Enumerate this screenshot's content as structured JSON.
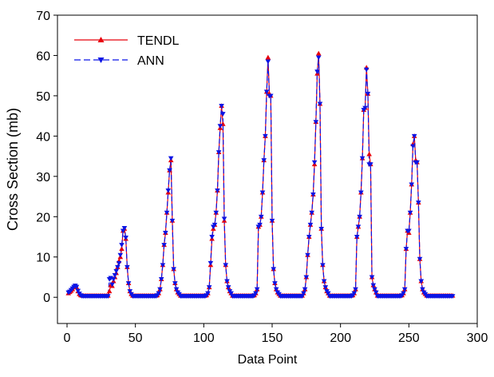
{
  "chart_data": {
    "type": "line",
    "x_label": "Data Point",
    "y_label": "Cross Section (mb)",
    "xlim": [
      -7,
      300
    ],
    "ylim": [
      -6.5,
      70
    ],
    "xticks": [
      0,
      50,
      100,
      150,
      200,
      250,
      300
    ],
    "yticks": [
      0,
      10,
      20,
      30,
      40,
      50,
      60,
      70
    ],
    "legend": "upper left",
    "x": [
      1,
      2,
      3,
      4,
      5,
      6,
      7,
      8,
      9,
      10,
      11,
      12,
      13,
      14,
      15,
      16,
      17,
      18,
      19,
      20,
      21,
      22,
      23,
      24,
      25,
      26,
      27,
      28,
      29,
      30,
      31,
      32,
      33,
      34,
      35,
      36,
      37,
      38,
      39,
      40,
      41,
      42,
      43,
      44,
      45,
      46,
      47,
      48,
      49,
      50,
      51,
      52,
      53,
      54,
      55,
      56,
      57,
      58,
      59,
      60,
      61,
      62,
      63,
      64,
      65,
      66,
      67,
      68,
      69,
      70,
      71,
      72,
      73,
      74,
      75,
      76,
      77,
      78,
      79,
      80,
      81,
      82,
      83,
      84,
      85,
      86,
      87,
      88,
      89,
      90,
      91,
      92,
      93,
      94,
      95,
      96,
      97,
      98,
      99,
      100,
      101,
      102,
      103,
      104,
      105,
      106,
      107,
      108,
      109,
      110,
      111,
      112,
      113,
      114,
      115,
      116,
      117,
      118,
      119,
      120,
      121,
      122,
      123,
      124,
      125,
      126,
      127,
      128,
      129,
      130,
      131,
      132,
      133,
      134,
      135,
      136,
      137,
      138,
      139,
      140,
      141,
      142,
      143,
      144,
      145,
      146,
      147,
      148,
      149,
      150,
      151,
      152,
      153,
      154,
      155,
      156,
      157,
      158,
      159,
      160,
      161,
      162,
      163,
      164,
      165,
      166,
      167,
      168,
      169,
      170,
      171,
      172,
      173,
      174,
      175,
      176,
      177,
      178,
      179,
      180,
      181,
      182,
      183,
      184,
      185,
      186,
      187,
      188,
      189,
      190,
      191,
      192,
      193,
      194,
      195,
      196,
      197,
      198,
      199,
      200,
      201,
      202,
      203,
      204,
      205,
      206,
      207,
      208,
      209,
      210,
      211,
      212,
      213,
      214,
      215,
      216,
      217,
      218,
      219,
      220,
      221,
      222,
      223,
      224,
      225,
      226,
      227,
      228,
      229,
      230,
      231,
      232,
      233,
      234,
      235,
      236,
      237,
      238,
      239,
      240,
      241,
      242,
      243,
      244,
      245,
      246,
      247,
      248,
      249,
      250,
      251,
      252,
      253,
      254,
      255,
      256,
      257,
      258,
      259,
      260,
      261,
      262,
      263,
      264,
      265,
      266,
      267,
      268,
      269,
      270,
      271,
      272,
      273,
      274,
      275,
      276,
      277,
      278,
      279,
      280,
      281,
      282
    ],
    "series": [
      {
        "name": "TENDL",
        "color": "#e8000b",
        "marker": "triangle-up",
        "dash": false,
        "values": [
          1.0,
          1.3,
          1.6,
          2.0,
          2.5,
          2.8,
          2.5,
          1.5,
          0.8,
          0.5,
          0.4,
          0.4,
          0.4,
          0.4,
          0.4,
          0.4,
          0.4,
          0.4,
          0.4,
          0.4,
          0.4,
          0.4,
          0.4,
          0.4,
          0.4,
          0.4,
          0.4,
          0.4,
          0.4,
          0.4,
          1.5,
          3,
          2.8,
          4,
          5,
          6,
          7.5,
          9,
          10,
          12,
          16.5,
          17,
          14.5,
          7.5,
          3.5,
          1.5,
          0.8,
          0.4,
          0.4,
          0.4,
          0.4,
          0.4,
          0.4,
          0.4,
          0.4,
          0.4,
          0.4,
          0.4,
          0.4,
          0.4,
          0.4,
          0.4,
          0.4,
          0.4,
          0.4,
          0.5,
          1,
          2,
          4.5,
          8,
          13,
          16,
          21,
          26,
          31.5,
          34,
          19,
          7,
          3.5,
          2,
          1.2,
          0.8,
          0.4,
          0.4,
          0.4,
          0.4,
          0.4,
          0.4,
          0.4,
          0.4,
          0.4,
          0.4,
          0.4,
          0.4,
          0.4,
          0.4,
          0.4,
          0.4,
          0.4,
          0.4,
          0.4,
          0.5,
          1,
          2.5,
          8,
          14.5,
          17,
          18,
          21,
          26.5,
          36,
          42,
          47.5,
          43,
          19,
          8,
          4,
          2.5,
          1.5,
          1,
          0.4,
          0.4,
          0.4,
          0.4,
          0.4,
          0.4,
          0.4,
          0.4,
          0.4,
          0.4,
          0.4,
          0.4,
          0.4,
          0.4,
          0.4,
          0.4,
          0.5,
          1,
          2,
          17.5,
          18,
          20,
          26,
          34,
          40,
          51,
          59.5,
          50.5,
          50,
          19,
          7,
          3.5,
          2,
          1.2,
          0.8,
          0.4,
          0.4,
          0.4,
          0.4,
          0.4,
          0.4,
          0.4,
          0.4,
          0.4,
          0.4,
          0.4,
          0.4,
          0.4,
          0.4,
          0.4,
          0.4,
          0.4,
          1,
          2,
          5,
          10.5,
          15,
          18,
          21,
          25.5,
          33,
          43.5,
          55.5,
          60.5,
          48,
          17,
          8,
          4,
          2.5,
          1.5,
          1,
          0.4,
          0.4,
          0.4,
          0.4,
          0.4,
          0.4,
          0.4,
          0.4,
          0.4,
          0.4,
          0.4,
          0.4,
          0.4,
          0.4,
          0.4,
          0.4,
          0.4,
          0.5,
          1,
          2,
          15,
          17.5,
          20,
          26,
          34.5,
          46.5,
          47,
          57,
          50.5,
          35.5,
          33,
          5,
          3,
          2,
          1.2,
          0.4,
          0.4,
          0.4,
          0.4,
          0.4,
          0.4,
          0.4,
          0.4,
          0.4,
          0.4,
          0.4,
          0.4,
          0.4,
          0.4,
          0.4,
          0.4,
          0.4,
          0.4,
          0.5,
          1,
          2,
          12,
          16.5,
          16,
          21,
          28,
          38,
          40,
          34,
          33.5,
          23.5,
          9.5,
          4,
          2,
          1.2,
          0.8,
          0.4,
          0.4,
          0.4,
          0.4,
          0.4,
          0.4,
          0.4,
          0.4,
          0.4,
          0.4,
          0.4,
          0.4,
          0.4,
          0.4,
          0.4,
          0.4,
          0.4,
          0.4,
          0.4,
          0.4
        ]
      },
      {
        "name": "ANN",
        "color": "#0a14e6",
        "marker": "triangle-down",
        "dash": true,
        "values": [
          1.2,
          1.4,
          1.8,
          2.2,
          2.6,
          2.9,
          2.6,
          1.6,
          0.9,
          0.5,
          0.3,
          0.3,
          0.3,
          0.3,
          0.3,
          0.3,
          0.3,
          0.3,
          0.3,
          0.3,
          0.3,
          0.3,
          0.3,
          0.3,
          0.3,
          0.3,
          0.3,
          0.3,
          0.3,
          0.3,
          4.5,
          4.8,
          3.2,
          4.5,
          5.5,
          6.5,
          7.5,
          8.5,
          10.5,
          13,
          16.5,
          17.2,
          14.8,
          7.5,
          3.5,
          1.5,
          0.8,
          0.3,
          0.3,
          0.3,
          0.3,
          0.3,
          0.3,
          0.3,
          0.3,
          0.3,
          0.3,
          0.3,
          0.3,
          0.3,
          0.3,
          0.3,
          0.3,
          0.3,
          0.3,
          0.5,
          1,
          2,
          4.5,
          8,
          13,
          16,
          21,
          26.5,
          31.5,
          34.5,
          19,
          7,
          3.5,
          2,
          1.2,
          0.8,
          0.3,
          0.3,
          0.3,
          0.3,
          0.3,
          0.3,
          0.3,
          0.3,
          0.3,
          0.3,
          0.3,
          0.3,
          0.3,
          0.3,
          0.3,
          0.3,
          0.3,
          0.3,
          0.3,
          0.5,
          1,
          2.5,
          8.5,
          15,
          17.5,
          18,
          21,
          26.5,
          36,
          42.5,
          47.5,
          45.5,
          19.5,
          8,
          4,
          2.5,
          1.5,
          1,
          0.3,
          0.3,
          0.3,
          0.3,
          0.3,
          0.3,
          0.3,
          0.3,
          0.3,
          0.3,
          0.3,
          0.3,
          0.3,
          0.3,
          0.3,
          0.3,
          0.5,
          1,
          2,
          17.5,
          18,
          20,
          26,
          34,
          40,
          51,
          58.5,
          50,
          50,
          19,
          7,
          3.5,
          2,
          1.2,
          0.8,
          0.3,
          0.3,
          0.3,
          0.3,
          0.3,
          0.3,
          0.3,
          0.3,
          0.3,
          0.3,
          0.3,
          0.3,
          0.3,
          0.3,
          0.3,
          0.3,
          0.3,
          1,
          2,
          5,
          10.5,
          15,
          18,
          21,
          25.5,
          33.5,
          43.5,
          56,
          59.5,
          48,
          17,
          8,
          4,
          2.5,
          1.5,
          1,
          0.3,
          0.3,
          0.3,
          0.3,
          0.3,
          0.3,
          0.3,
          0.3,
          0.3,
          0.3,
          0.3,
          0.3,
          0.3,
          0.3,
          0.3,
          0.3,
          0.3,
          0.5,
          1,
          2,
          15,
          17.5,
          20,
          26,
          34.5,
          46.5,
          47,
          56.5,
          50.5,
          33,
          33,
          5,
          3,
          2,
          1.2,
          0.3,
          0.3,
          0.3,
          0.3,
          0.3,
          0.3,
          0.3,
          0.3,
          0.3,
          0.3,
          0.3,
          0.3,
          0.3,
          0.3,
          0.3,
          0.3,
          0.3,
          0.3,
          0.5,
          1,
          2,
          12,
          16.5,
          16.5,
          21,
          28,
          37.5,
          40,
          33.5,
          33.5,
          23.5,
          9.5,
          4,
          2,
          1.2,
          0.8,
          0.3,
          0.3,
          0.3,
          0.3,
          0.3,
          0.3,
          0.3,
          0.3,
          0.3,
          0.3,
          0.3,
          0.3,
          0.3,
          0.3,
          0.3,
          0.3,
          0.3,
          0.3,
          0.3,
          0.3
        ]
      }
    ]
  }
}
